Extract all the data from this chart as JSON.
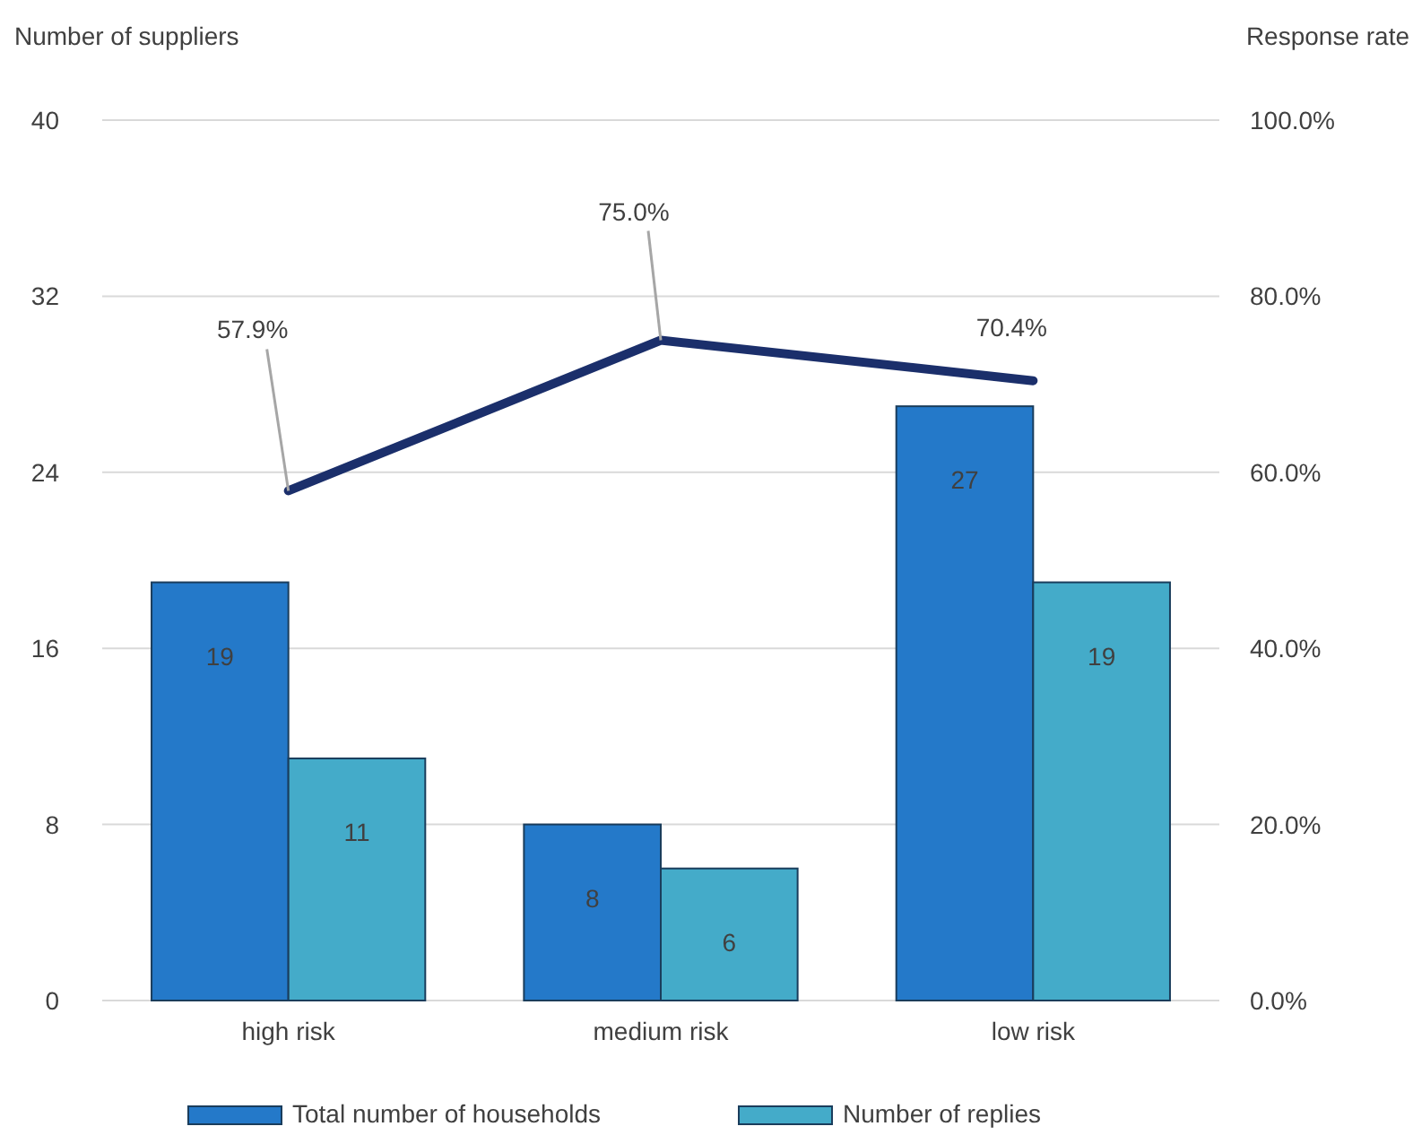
{
  "chart_data": {
    "type": "bar",
    "ylabel": "Number of suppliers",
    "y2label": "Response rate",
    "categories": [
      "high risk",
      "medium risk",
      "low risk"
    ],
    "series": [
      {
        "name": "Total number of households",
        "color": "#2479c9",
        "values": [
          19,
          8,
          27
        ],
        "value_labels": [
          "19",
          "8",
          "27"
        ]
      },
      {
        "name": "Number of replies",
        "color": "#44abc9",
        "values": [
          11,
          6,
          19
        ],
        "value_labels": [
          "11",
          "6",
          "19"
        ]
      },
      {
        "type": "line",
        "axis": "y2",
        "color": "#1b2f6b",
        "values": [
          57.9,
          75.0,
          70.4
        ],
        "value_labels": [
          "57.9%",
          "75.0%",
          "70.4%"
        ]
      }
    ],
    "ylim": [
      0,
      40
    ],
    "yticks": [
      0,
      8,
      16,
      24,
      32,
      40
    ],
    "y2lim": [
      0,
      100
    ],
    "y2ticks": [
      {
        "value": 0,
        "label": "0.0%"
      },
      {
        "value": 20,
        "label": "20.0%"
      },
      {
        "value": 40,
        "label": "40.0%"
      },
      {
        "value": 60,
        "label": "60.0%"
      },
      {
        "value": 80,
        "label": "80.0%"
      },
      {
        "value": 100,
        "label": "100.0%"
      }
    ],
    "grid": "y",
    "legend": "bottom",
    "marker": "none",
    "line_style": "solid"
  }
}
